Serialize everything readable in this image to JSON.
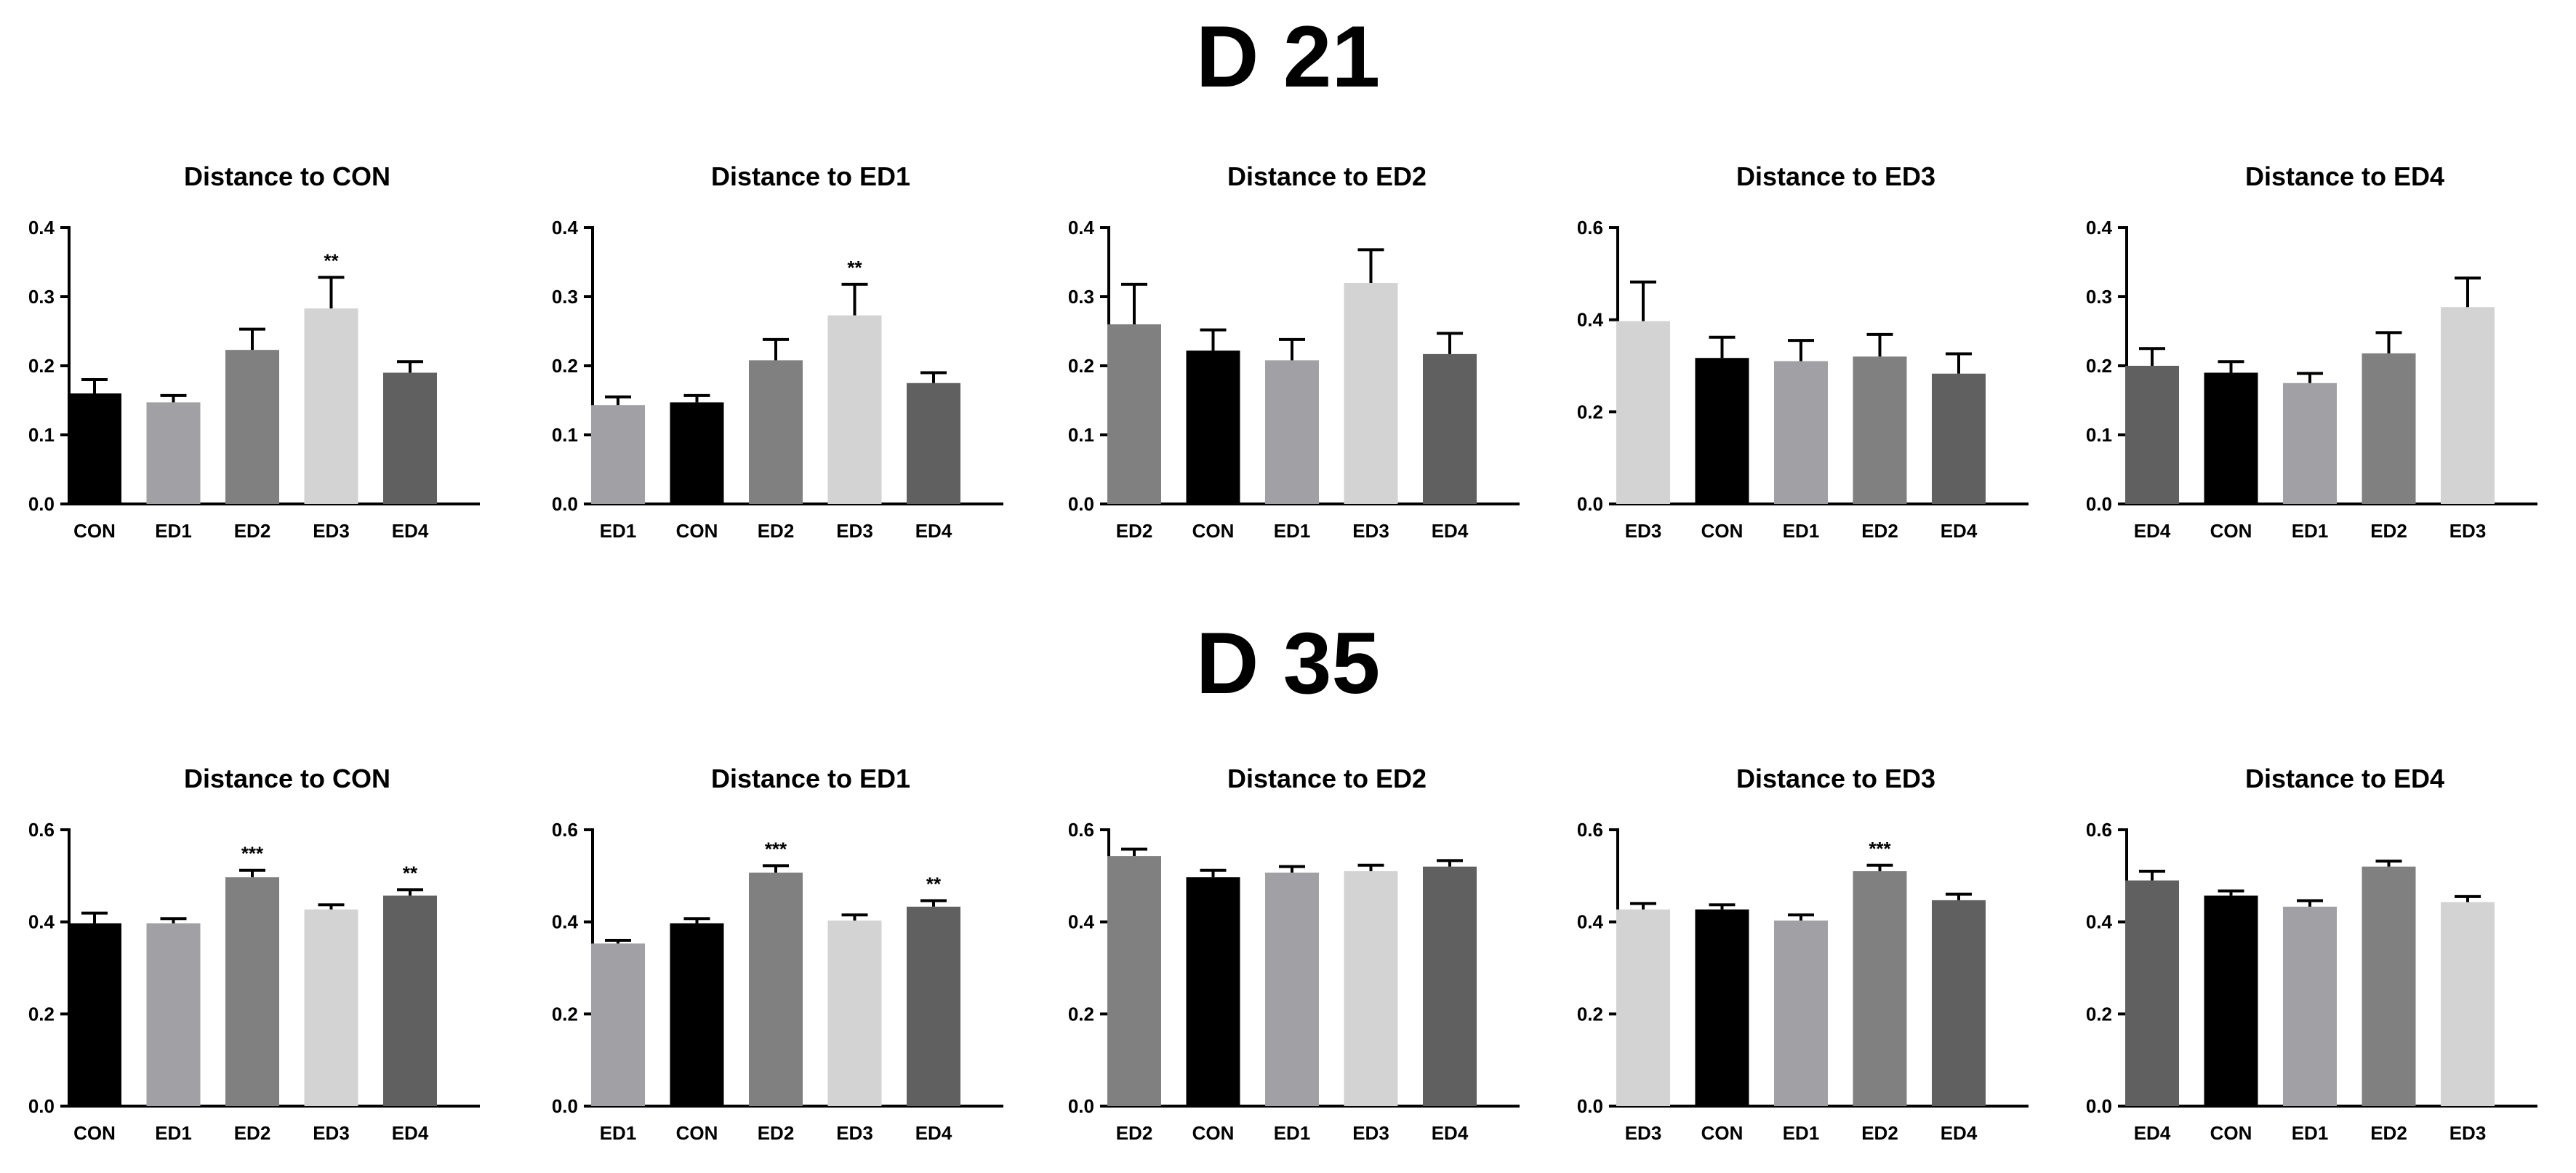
{
  "sections": [
    {
      "title": "D 21"
    },
    {
      "title": "D 35"
    }
  ],
  "colors": {
    "CON": "#000000",
    "ED1": "#a0a0a5",
    "ED2": "#808080",
    "ED3": "#d3d3d3",
    "ED4": "#606060"
  },
  "chart_data": [
    {
      "type": "bar",
      "section": "D 21",
      "title": "Distance to CON",
      "ylim": [
        0,
        0.4
      ],
      "yticks": [
        "0.0",
        "0.1",
        "0.2",
        "0.3",
        "0.4"
      ],
      "categories": [
        "CON",
        "ED1",
        "ED2",
        "ED3",
        "ED4"
      ],
      "values": [
        0.16,
        0.147,
        0.223,
        0.283,
        0.19
      ],
      "errors": [
        0.02,
        0.01,
        0.03,
        0.045,
        0.016
      ],
      "significance": [
        "",
        "",
        "",
        "**",
        ""
      ]
    },
    {
      "type": "bar",
      "section": "D 21",
      "title": "Distance to ED1",
      "ylim": [
        0,
        0.4
      ],
      "yticks": [
        "0.0",
        "0.1",
        "0.2",
        "0.3",
        "0.4"
      ],
      "categories": [
        "ED1",
        "CON",
        "ED2",
        "ED3",
        "ED4"
      ],
      "values": [
        0.143,
        0.147,
        0.208,
        0.273,
        0.175
      ],
      "errors": [
        0.012,
        0.01,
        0.03,
        0.045,
        0.015
      ],
      "significance": [
        "",
        "",
        "",
        "**",
        ""
      ]
    },
    {
      "type": "bar",
      "section": "D 21",
      "title": "Distance to ED2",
      "ylim": [
        0,
        0.4
      ],
      "yticks": [
        "0.0",
        "0.1",
        "0.2",
        "0.3",
        "0.4"
      ],
      "categories": [
        "ED2",
        "CON",
        "ED1",
        "ED3",
        "ED4"
      ],
      "values": [
        0.26,
        0.222,
        0.208,
        0.32,
        0.217
      ],
      "errors": [
        0.058,
        0.03,
        0.03,
        0.048,
        0.03
      ],
      "significance": [
        "",
        "",
        "",
        "",
        ""
      ]
    },
    {
      "type": "bar",
      "section": "D 21",
      "title": "Distance to ED3",
      "ylim": [
        0,
        0.6
      ],
      "yticks": [
        "0.0",
        "0.2",
        "0.4",
        "0.6"
      ],
      "categories": [
        "ED3",
        "CON",
        "ED1",
        "ED2",
        "ED4"
      ],
      "values": [
        0.397,
        0.317,
        0.31,
        0.32,
        0.283
      ],
      "errors": [
        0.085,
        0.045,
        0.045,
        0.048,
        0.043
      ],
      "significance": [
        "",
        "",
        "",
        "",
        ""
      ]
    },
    {
      "type": "bar",
      "section": "D 21",
      "title": "Distance to ED4",
      "ylim": [
        0,
        0.4
      ],
      "yticks": [
        "0.0",
        "0.1",
        "0.2",
        "0.3",
        "0.4"
      ],
      "categories": [
        "ED4",
        "CON",
        "ED1",
        "ED2",
        "ED3"
      ],
      "values": [
        0.2,
        0.19,
        0.175,
        0.218,
        0.285
      ],
      "errors": [
        0.025,
        0.016,
        0.014,
        0.03,
        0.042
      ],
      "significance": [
        "",
        "",
        "",
        "",
        ""
      ]
    },
    {
      "type": "bar",
      "section": "D 35",
      "title": "Distance to CON",
      "ylim": [
        0,
        0.6
      ],
      "yticks": [
        "0.0",
        "0.2",
        "0.4",
        "0.6"
      ],
      "categories": [
        "CON",
        "ED1",
        "ED2",
        "ED3",
        "ED4"
      ],
      "values": [
        0.397,
        0.397,
        0.497,
        0.427,
        0.457
      ],
      "errors": [
        0.022,
        0.01,
        0.015,
        0.01,
        0.013
      ],
      "significance": [
        "",
        "",
        "***",
        "",
        "**"
      ]
    },
    {
      "type": "bar",
      "section": "D 35",
      "title": "Distance to ED1",
      "ylim": [
        0,
        0.6
      ],
      "yticks": [
        "0.0",
        "0.2",
        "0.4",
        "0.6"
      ],
      "categories": [
        "ED1",
        "CON",
        "ED2",
        "ED3",
        "ED4"
      ],
      "values": [
        0.353,
        0.397,
        0.507,
        0.403,
        0.433
      ],
      "errors": [
        0.007,
        0.01,
        0.015,
        0.012,
        0.013
      ],
      "significance": [
        "",
        "",
        "***",
        "",
        "**"
      ]
    },
    {
      "type": "bar",
      "section": "D 35",
      "title": "Distance to ED2",
      "ylim": [
        0,
        0.6
      ],
      "yticks": [
        "0.0",
        "0.2",
        "0.4",
        "0.6"
      ],
      "categories": [
        "ED2",
        "CON",
        "ED1",
        "ED3",
        "ED4"
      ],
      "values": [
        0.543,
        0.497,
        0.507,
        0.51,
        0.52
      ],
      "errors": [
        0.015,
        0.015,
        0.013,
        0.013,
        0.013
      ],
      "significance": [
        "",
        "",
        "",
        "",
        ""
      ]
    },
    {
      "type": "bar",
      "section": "D 35",
      "title": "Distance to ED3",
      "ylim": [
        0,
        0.6
      ],
      "yticks": [
        "0.0",
        "0.2",
        "0.4",
        "0.6"
      ],
      "categories": [
        "ED3",
        "CON",
        "ED1",
        "ED2",
        "ED4"
      ],
      "values": [
        0.427,
        0.427,
        0.403,
        0.51,
        0.447
      ],
      "errors": [
        0.013,
        0.01,
        0.012,
        0.013,
        0.013
      ],
      "significance": [
        "",
        "",
        "",
        "***",
        ""
      ]
    },
    {
      "type": "bar",
      "section": "D 35",
      "title": "Distance to ED4",
      "ylim": [
        0,
        0.6
      ],
      "yticks": [
        "0.0",
        "0.2",
        "0.4",
        "0.6"
      ],
      "categories": [
        "ED4",
        "CON",
        "ED1",
        "ED2",
        "ED3"
      ],
      "values": [
        0.49,
        0.457,
        0.433,
        0.52,
        0.443
      ],
      "errors": [
        0.02,
        0.01,
        0.013,
        0.012,
        0.012
      ],
      "significance": [
        "",
        "",
        "",
        "",
        ""
      ]
    }
  ]
}
